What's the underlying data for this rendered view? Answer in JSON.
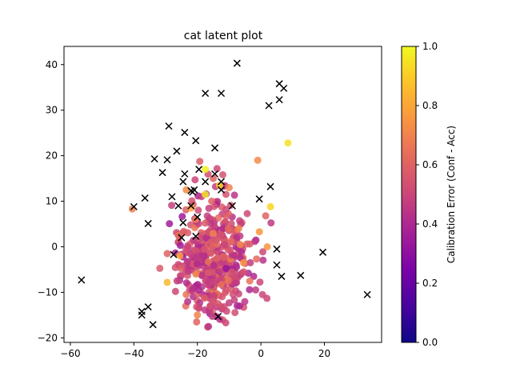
{
  "chart_data": {
    "type": "scatter",
    "title": "cat latent plot",
    "xlabel": "",
    "ylabel": "",
    "xlim": [
      -62,
      38
    ],
    "ylim": [
      -21,
      44
    ],
    "x_ticks": [
      -60,
      -40,
      -20,
      0,
      20
    ],
    "y_ticks": [
      -20,
      -10,
      0,
      10,
      20,
      30,
      40
    ],
    "grid": false,
    "colorbar": {
      "label": "Calibration Error (Conf - Acc)",
      "colormap": "plasma",
      "range": [
        0.0,
        1.0
      ],
      "ticks": [
        "0.0",
        "0.2",
        "0.4",
        "0.6",
        "0.8",
        "1.0"
      ]
    },
    "series": [
      {
        "marker": "x",
        "color": "#000000",
        "points": [
          [
            -7.5,
            40.3
          ],
          [
            -17.5,
            33.7
          ],
          [
            -12.5,
            33.7
          ],
          [
            5.8,
            35.8
          ],
          [
            7.2,
            34.8
          ],
          [
            2.5,
            31.0
          ],
          [
            5.8,
            32.3
          ],
          [
            -29.0,
            26.5
          ],
          [
            -24.0,
            25.1
          ],
          [
            -20.5,
            23.3
          ],
          [
            -14.5,
            21.7
          ],
          [
            -26.5,
            21.0
          ],
          [
            -33.5,
            19.3
          ],
          [
            -29.5,
            19.1
          ],
          [
            -31.0,
            16.3
          ],
          [
            -19.5,
            17.0
          ],
          [
            -24.0,
            16.0
          ],
          [
            -14.5,
            16.0
          ],
          [
            -24.5,
            14.3
          ],
          [
            -17.5,
            14.3
          ],
          [
            -12.5,
            14.3
          ],
          [
            -12.5,
            12.5
          ],
          [
            -21.0,
            12.5
          ],
          [
            -21.5,
            12.0
          ],
          [
            -28.0,
            11.0
          ],
          [
            -36.5,
            10.7
          ],
          [
            -22.0,
            12.3
          ],
          [
            -26.0,
            9.0
          ],
          [
            -22.0,
            9.0
          ],
          [
            -40.0,
            8.8
          ],
          [
            -9.0,
            9.0
          ],
          [
            3.0,
            13.2
          ],
          [
            -0.5,
            10.5
          ],
          [
            -35.5,
            5.1
          ],
          [
            -24.5,
            5.3
          ],
          [
            -20.0,
            6.5
          ],
          [
            -25.0,
            2.0
          ],
          [
            -20.5,
            2.3
          ],
          [
            -27.5,
            -1.7
          ],
          [
            5.0,
            -0.5
          ],
          [
            5.0,
            -4.0
          ],
          [
            6.5,
            -6.5
          ],
          [
            12.5,
            -6.3
          ],
          [
            19.5,
            -1.2
          ],
          [
            -56.5,
            -7.3
          ],
          [
            33.5,
            -10.5
          ],
          [
            -35.5,
            -13.2
          ],
          [
            -37.5,
            -14.2
          ],
          [
            -37.5,
            -15.0
          ],
          [
            -13.5,
            -15.3
          ],
          [
            -34.0,
            -17.1
          ]
        ]
      },
      {
        "marker": "circle",
        "color_by": "calibration_error",
        "seed": 7,
        "n": 420,
        "center": [
          -14.5,
          -2.5
        ],
        "spread": [
          5.5,
          6.5
        ],
        "error_mean": 0.5,
        "error_std": 0.07,
        "points": [
          [
            8.5,
            22.8,
            0.95
          ],
          [
            -1.0,
            19.0,
            0.72
          ],
          [
            -17.5,
            17.0,
            0.98
          ],
          [
            -13.0,
            13.5,
            0.9
          ],
          [
            -17.5,
            11.5,
            0.96
          ],
          [
            -10.0,
            13.0,
            0.7
          ],
          [
            3.0,
            8.8,
            0.92
          ],
          [
            -40.5,
            8.3,
            0.7
          ],
          [
            1.5,
            6.8,
            0.6
          ],
          [
            -0.5,
            3.3,
            0.75
          ],
          [
            2.0,
            0.0,
            0.75
          ],
          [
            -7.0,
            4.0,
            0.7
          ],
          [
            -29.5,
            -7.8,
            0.85
          ],
          [
            -29.5,
            -1.5,
            0.6
          ],
          [
            -20.5,
            6.0,
            0.7
          ],
          [
            -23.5,
            12.5,
            0.72
          ],
          [
            -15.0,
            15.0,
            0.6
          ],
          [
            -12.0,
            15.8,
            0.55
          ],
          [
            -23.5,
            -10.5,
            0.65
          ],
          [
            0.5,
            -10.5,
            0.5
          ],
          [
            -3.5,
            -7.5,
            0.65
          ],
          [
            -20.0,
            -15.0,
            0.7
          ],
          [
            -16.5,
            -17.5,
            0.45
          ],
          [
            -13.5,
            -12.5,
            0.55
          ],
          [
            -19.5,
            -13.5,
            0.5
          ],
          [
            -16.0,
            -13.0,
            0.55
          ],
          [
            -26.0,
            2.5,
            0.65
          ],
          [
            -25.5,
            -2.0,
            0.8
          ],
          [
            -5.5,
            -3.5,
            0.75
          ],
          [
            -6.5,
            0.5,
            0.72
          ],
          [
            -22.0,
            8.5,
            0.8
          ],
          [
            -15.5,
            10.0,
            0.6
          ],
          [
            -11.0,
            11.5,
            0.55
          ],
          [
            -20.5,
            -6.0,
            0.7
          ],
          [
            -8.0,
            -8.0,
            0.45
          ]
        ]
      }
    ]
  }
}
